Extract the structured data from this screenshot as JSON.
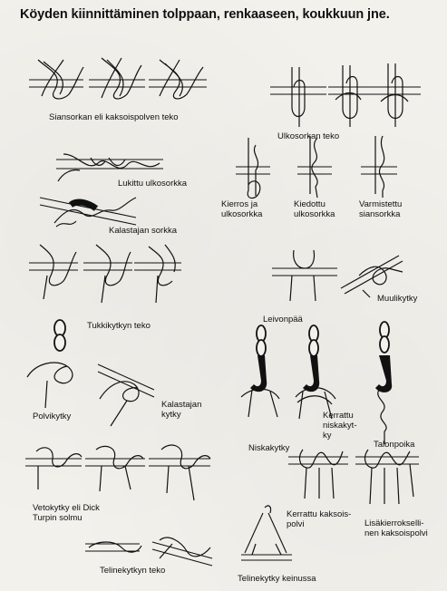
{
  "title": "Köyden kiinnittäminen tolppaan, renkaaseen, koukkuun jne.",
  "labels": {
    "siansorkka": "Siansorkan eli kaksoispolven teko",
    "ulkosorkka": "Ulkosorkan teko",
    "lukittu": "Lukittu ulkosorkka",
    "kierros_1": "Kierros ja",
    "kierros_2": "ulkosorkka",
    "kiedottu_1": "Kiedottu",
    "kiedottu_2": "ulkosorkka",
    "varmistettu_1": "Varmistettu",
    "varmistettu_2": "siansorkka",
    "kalastajan_sorkka": "Kalastajan sorkka",
    "tukkikytky": "Tukkikytkyn teko",
    "muulikytky": "Muulikytky",
    "leivonpaa": "Leivonpää",
    "polvikytky": "Polvikytky",
    "kalastajan_kytky_1": "Kalastajan",
    "kalastajan_kytky_2": "kytky",
    "niskakytky": "Niskakytky",
    "kerrattu_niska_1": "Kerrattu",
    "kerrattu_niska_2": "niskakyt-",
    "kerrattu_niska_3": "ky",
    "talonpoika": "Talonpoika",
    "vetokytky_1": "Vetokytky eli Dick",
    "vetokytky_2": "Turpin solmu",
    "kerrattu_kaksois_1": "Kerrattu kaksois-",
    "kerrattu_kaksois_2": "polvi",
    "lisakierros_1": "Lisäkierrokselli-",
    "lisakierros_2": "nen kaksoispolvi",
    "telinekytky_teko": "Telinekytkyn teko",
    "telinekytky_keinussa": "Telinekytky keinussa"
  }
}
